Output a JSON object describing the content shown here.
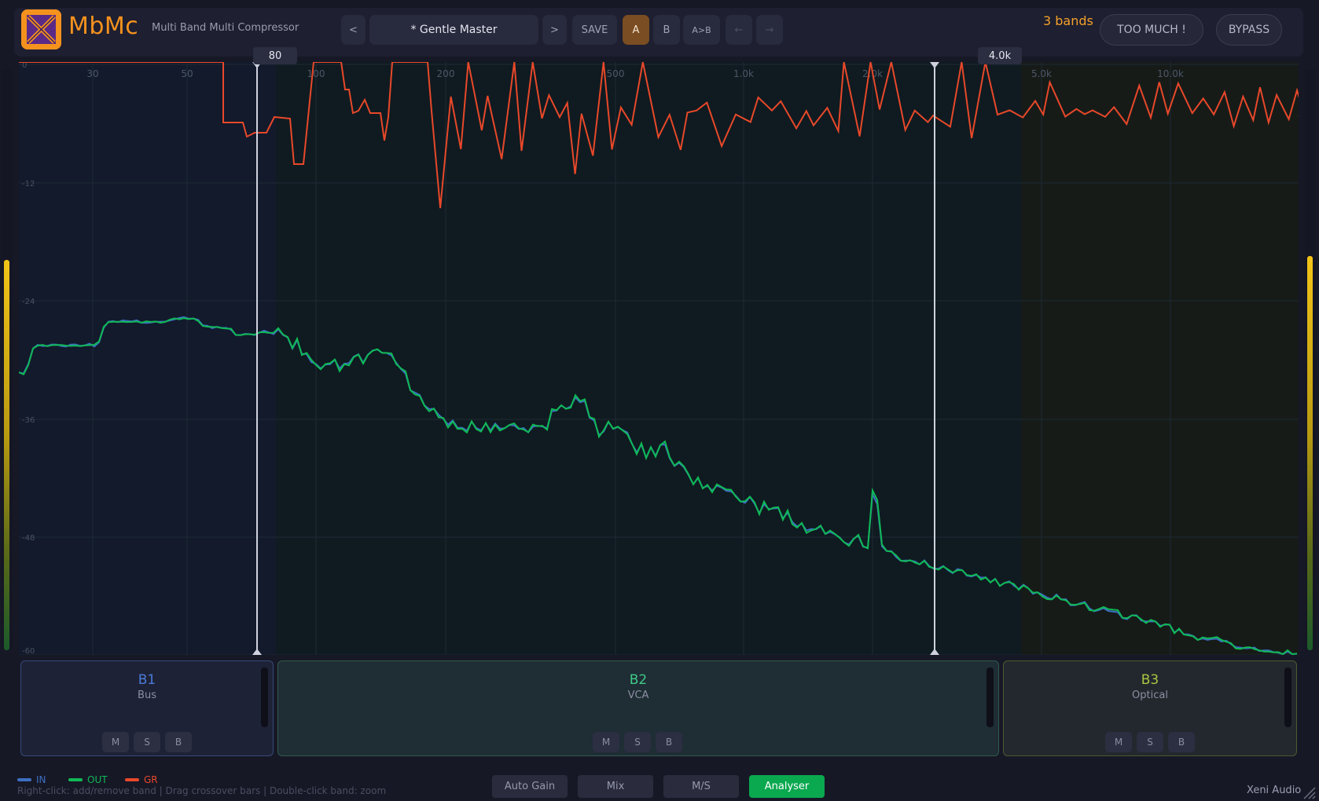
{
  "header": {
    "app_name": "MbMc",
    "app_subtitle": "Multi Band Multi Compressor",
    "prev_preset": "<",
    "preset_name": "* Gentle Master",
    "next_preset": ">",
    "save": "SAVE",
    "a": "A",
    "b": "B",
    "a_to_b": "A>B",
    "undo": "←",
    "redo": "→",
    "bands_count": "3 bands",
    "too_much": "TOO MUCH !",
    "bypass": "BYPASS"
  },
  "colors": {
    "accent": "#f5921e",
    "in": "#3d6fc4",
    "out": "#0fb955",
    "gr": "#e8482a",
    "band1": "#4a7ad8",
    "band2": "#3ec986",
    "band3": "#a8c640"
  },
  "graph": {
    "y_labels": [
      "0",
      "-12",
      "-24",
      "-36",
      "-48",
      "-60"
    ],
    "freq_labels": [
      "30",
      "50",
      "100",
      "200",
      "500",
      "1.0k",
      "2.0k",
      "5.0k",
      "10.0k"
    ],
    "crossovers": [
      "80",
      "4.0k"
    ]
  },
  "bands": [
    {
      "name": "B1",
      "type": "Bus"
    },
    {
      "name": "B2",
      "type": "VCA"
    },
    {
      "name": "B3",
      "type": "Optical"
    }
  ],
  "band_buttons": [
    "M",
    "S",
    "B"
  ],
  "legend": {
    "in": "IN",
    "out": "OUT",
    "gr": "GR"
  },
  "hint": "Right-click: add/remove band | Drag crossover bars | Double-click band: zoom",
  "tabs": [
    "Auto Gain",
    "Mix",
    "M/S",
    "Analyser"
  ],
  "brand": "Xeni Audio",
  "icons": {
    "logo": "x-logo-icon",
    "resize": "resize-grip-icon"
  }
}
